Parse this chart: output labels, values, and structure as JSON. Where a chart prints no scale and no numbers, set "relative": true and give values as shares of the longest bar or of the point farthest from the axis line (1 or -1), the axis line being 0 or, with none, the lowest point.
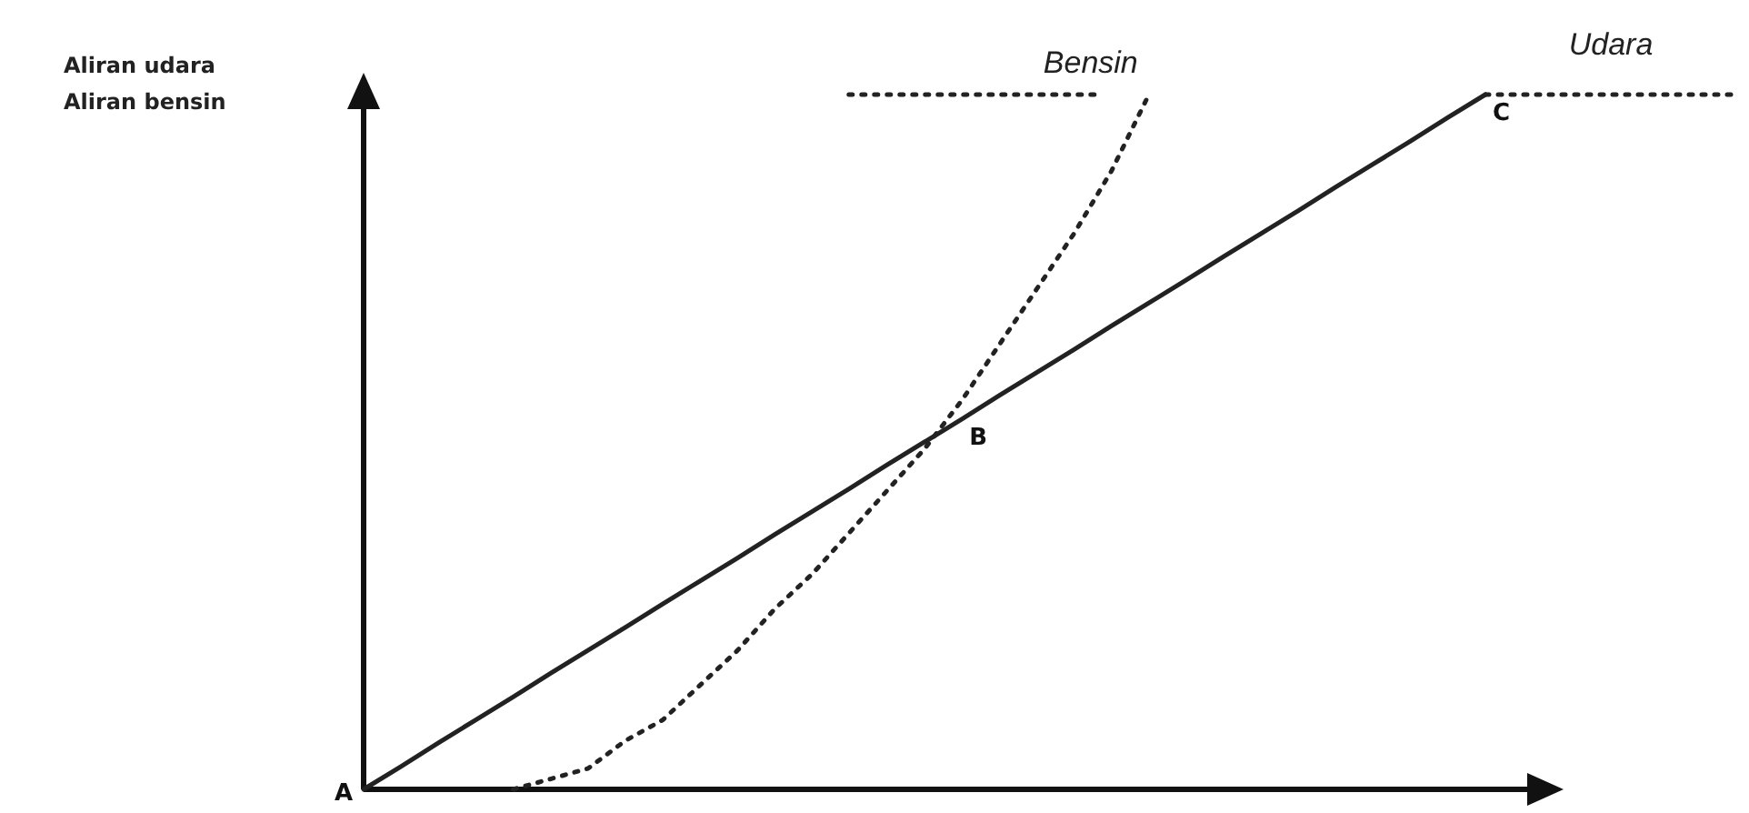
{
  "chart_data": {
    "type": "line",
    "relative": true,
    "categories": [
      null,
      null,
      null,
      null,
      null,
      null,
      null,
      null,
      null,
      null,
      null,
      null,
      null,
      null,
      null,
      null,
      null,
      null,
      null,
      null,
      null,
      null,
      null,
      null,
      null,
      null,
      null,
      null,
      null,
      null,
      null
    ],
    "series": [
      {
        "name": "Bensin",
        "color": "#222222",
        "line_style": "dotted",
        "values": [
          null,
          null,
          null,
          null,
          0,
          0.015,
          0.03,
          0.07,
          0.1,
          0.15,
          0.2,
          0.26,
          0.31,
          0.37,
          0.43,
          0.49,
          0.56,
          0.64,
          0.72,
          0.8,
          0.89,
          1,
          null,
          null,
          null,
          null,
          null,
          null,
          null,
          null,
          null
        ]
      },
      {
        "name": "Udara",
        "color": "#222222",
        "line_style": "solid",
        "values": [
          0,
          0.033,
          0.067,
          0.1,
          0.133,
          0.167,
          0.2,
          0.233,
          0.267,
          0.3,
          0.333,
          0.367,
          0.4,
          0.433,
          0.467,
          0.5,
          0.533,
          0.567,
          0.6,
          0.633,
          0.667,
          0.7,
          0.733,
          0.767,
          0.8,
          0.833,
          0.867,
          0.9,
          0.933,
          0.967,
          1
        ]
      }
    ],
    "annotations": [
      "Aliran udara\nAliran bensin",
      "A",
      "B",
      "C"
    ]
  }
}
